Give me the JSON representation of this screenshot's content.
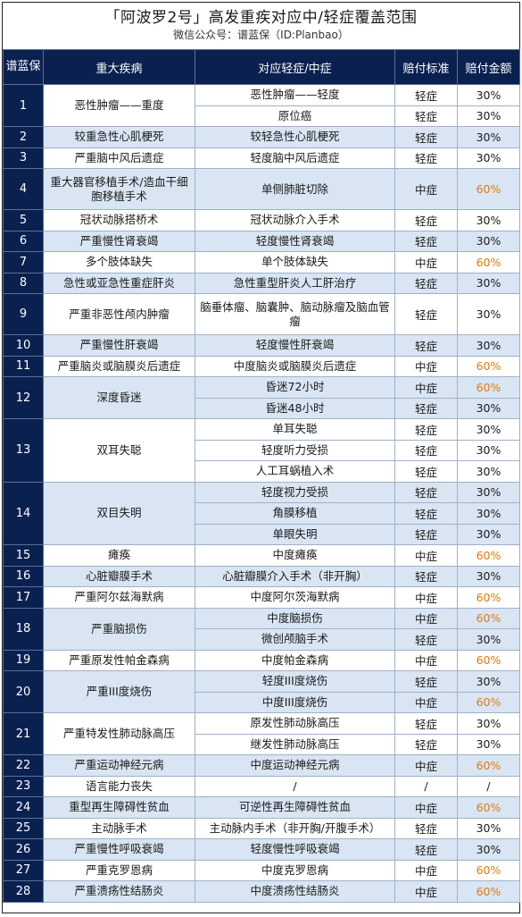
{
  "header": {
    "title": "「阿波罗2号」高发重疾对应中/轻症覆盖范围",
    "subtitle": "微信公众号：谱蓝保（ID:Planbao）"
  },
  "table": {
    "columns": [
      "谱蓝保",
      "重大疾病",
      "对应轻症/中症",
      "赔付标准",
      "赔付金额"
    ],
    "rows": [
      {
        "no": "1",
        "disease": "恶性肿瘤——重度",
        "subs": [
          {
            "name": "恶性肿瘤——轻度",
            "std": "轻症",
            "amt": "30%"
          },
          {
            "name": "原位癌",
            "std": "轻症",
            "amt": "30%"
          }
        ]
      },
      {
        "no": "2",
        "disease": "较重急性心肌梗死",
        "subs": [
          {
            "name": "较轻急性心肌梗死",
            "std": "轻症",
            "amt": "30%"
          }
        ]
      },
      {
        "no": "3",
        "disease": "严重脑中风后遗症",
        "subs": [
          {
            "name": "轻度脑中风后遗症",
            "std": "轻症",
            "amt": "30%"
          }
        ]
      },
      {
        "no": "4",
        "disease": "重大器官移植手术/造血干细胞移植手术",
        "subs": [
          {
            "name": "单侧肺脏切除",
            "std": "中症",
            "amt": "60%"
          }
        ]
      },
      {
        "no": "5",
        "disease": "冠状动脉搭桥术",
        "subs": [
          {
            "name": "冠状动脉介入手术",
            "std": "轻症",
            "amt": "30%"
          }
        ]
      },
      {
        "no": "6",
        "disease": "严重慢性肾衰竭",
        "subs": [
          {
            "name": "轻度慢性肾衰竭",
            "std": "轻症",
            "amt": "30%"
          }
        ]
      },
      {
        "no": "7",
        "disease": "多个肢体缺失",
        "subs": [
          {
            "name": "单个肢体缺失",
            "std": "中症",
            "amt": "60%"
          }
        ]
      },
      {
        "no": "8",
        "disease": "急性或亚急性重症肝炎",
        "subs": [
          {
            "name": "急性重型肝炎人工肝治疗",
            "std": "轻症",
            "amt": "30%"
          }
        ]
      },
      {
        "no": "9",
        "disease": "严重非恶性颅内肿瘤",
        "subs": [
          {
            "name": "脑垂体瘤、脑囊肿、脑动脉瘤及脑血管瘤",
            "std": "轻症",
            "amt": "30%"
          }
        ]
      },
      {
        "no": "10",
        "disease": "严重慢性肝衰竭",
        "subs": [
          {
            "name": "轻度慢性肝衰竭",
            "std": "轻症",
            "amt": "30%"
          }
        ]
      },
      {
        "no": "11",
        "disease": "严重脑炎或脑膜炎后遗症",
        "subs": [
          {
            "name": "中度脑炎或脑膜炎后遗症",
            "std": "中症",
            "amt": "60%"
          }
        ]
      },
      {
        "no": "12",
        "disease": "深度昏迷",
        "subs": [
          {
            "name": "昏迷72小时",
            "std": "中症",
            "amt": "60%"
          },
          {
            "name": "昏迷48小时",
            "std": "轻症",
            "amt": "30%"
          }
        ]
      },
      {
        "no": "13",
        "disease": "双耳失聪",
        "subs": [
          {
            "name": "单耳失聪",
            "std": "轻症",
            "amt": "30%"
          },
          {
            "name": "轻度听力受损",
            "std": "轻症",
            "amt": "30%"
          },
          {
            "name": "人工耳蜗植入术",
            "std": "轻症",
            "amt": "30%"
          }
        ]
      },
      {
        "no": "14",
        "disease": "双目失明",
        "subs": [
          {
            "name": "轻度视力受损",
            "std": "轻症",
            "amt": "30%"
          },
          {
            "name": "角膜移植",
            "std": "轻症",
            "amt": "30%"
          },
          {
            "name": "单眼失明",
            "std": "轻症",
            "amt": "30%"
          }
        ]
      },
      {
        "no": "15",
        "disease": "瘫痪",
        "subs": [
          {
            "name": "中度瘫痪",
            "std": "中症",
            "amt": "60%"
          }
        ]
      },
      {
        "no": "16",
        "disease": "心脏瓣膜手术",
        "subs": [
          {
            "name": "心脏瓣膜介入手术（非开胸）",
            "std": "轻症",
            "amt": "30%"
          }
        ]
      },
      {
        "no": "17",
        "disease": "严重阿尔兹海默病",
        "subs": [
          {
            "name": "中度阿尔茨海默病",
            "std": "中症",
            "amt": "60%"
          }
        ]
      },
      {
        "no": "18",
        "disease": "严重脑损伤",
        "subs": [
          {
            "name": "中度脑损伤",
            "std": "中症",
            "amt": "60%"
          },
          {
            "name": "微创颅脑手术",
            "std": "轻症",
            "amt": "30%"
          }
        ]
      },
      {
        "no": "19",
        "disease": "严重原发性帕金森病",
        "subs": [
          {
            "name": "中度帕金森病",
            "std": "中症",
            "amt": "60%"
          }
        ]
      },
      {
        "no": "20",
        "disease": "严重III度烧伤",
        "subs": [
          {
            "name": "轻度III度烧伤",
            "std": "轻症",
            "amt": "30%"
          },
          {
            "name": "中度III度烧伤",
            "std": "中症",
            "amt": "60%"
          }
        ]
      },
      {
        "no": "21",
        "disease": "严重特发性肺动脉高压",
        "subs": [
          {
            "name": "原发性肺动脉高压",
            "std": "轻症",
            "amt": "30%"
          },
          {
            "name": "继发性肺动脉高压",
            "std": "轻症",
            "amt": "30%"
          }
        ]
      },
      {
        "no": "22",
        "disease": "严重运动神经元病",
        "subs": [
          {
            "name": "中度运动神经元病",
            "std": "中症",
            "amt": "60%"
          }
        ]
      },
      {
        "no": "23",
        "disease": "语言能力丧失",
        "subs": [
          {
            "name": "/",
            "std": "/",
            "amt": "/"
          }
        ]
      },
      {
        "no": "24",
        "disease": "重型再生障碍性贫血",
        "subs": [
          {
            "name": "可逆性再生障碍性贫血",
            "std": "中症",
            "amt": "60%"
          }
        ]
      },
      {
        "no": "25",
        "disease": "主动脉手术",
        "subs": [
          {
            "name": "主动脉内手术（非开胸/开腹手术）",
            "std": "轻症",
            "amt": "30%"
          }
        ]
      },
      {
        "no": "26",
        "disease": "严重慢性呼吸衰竭",
        "subs": [
          {
            "name": "轻度慢性呼吸衰竭",
            "std": "轻症",
            "amt": "30%"
          }
        ]
      },
      {
        "no": "27",
        "disease": "严重克罗恩病",
        "subs": [
          {
            "name": "中度克罗恩病",
            "std": "中症",
            "amt": "60%"
          }
        ]
      },
      {
        "no": "28",
        "disease": "严重溃疡性结肠炎",
        "subs": [
          {
            "name": "中度溃疡性结肠炎",
            "std": "中症",
            "amt": "60%"
          }
        ]
      }
    ]
  },
  "colors": {
    "header_bg": "#0a2150",
    "row_alt_bg": "#d9e5f3",
    "amount_highlight": "#e07b10"
  }
}
